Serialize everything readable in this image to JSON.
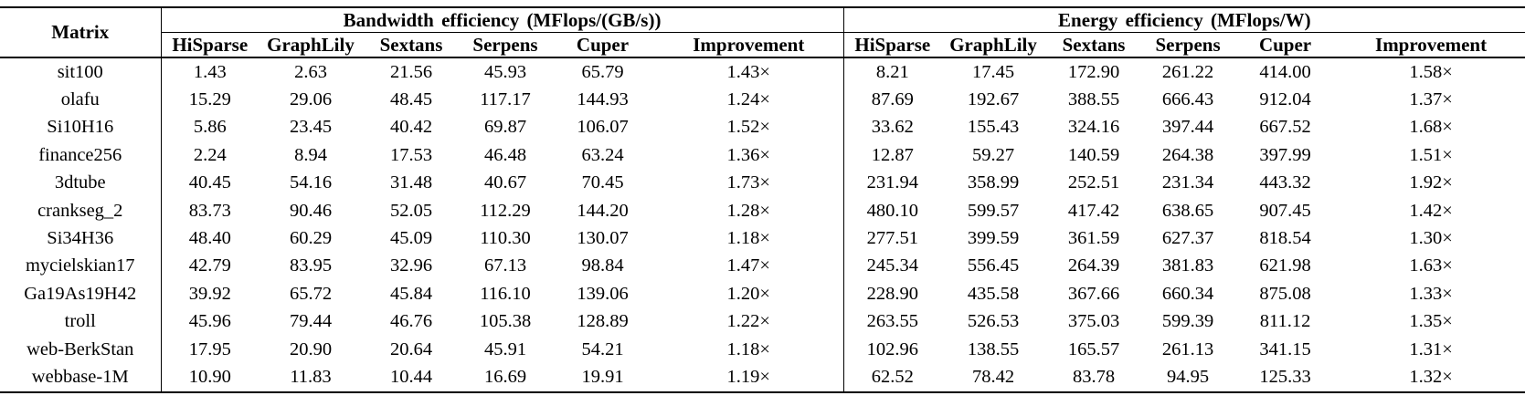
{
  "table": {
    "matrix_header": "Matrix",
    "groups": [
      {
        "label": "Bandwidth efficiency (MFlops/(GB/s))"
      },
      {
        "label": "Energy efficiency (MFlops/W)"
      }
    ],
    "columns": [
      "HiSparse",
      "GraphLily",
      "Sextans",
      "Serpens",
      "Cuper",
      "Improvement"
    ],
    "rows": [
      {
        "cells": [
          "sit100",
          "1.43",
          "2.63",
          "21.56",
          "45.93",
          "65.79",
          "1.43×",
          "8.21",
          "17.45",
          "172.90",
          "261.22",
          "414.00",
          "1.58×"
        ]
      },
      {
        "cells": [
          "olafu",
          "15.29",
          "29.06",
          "48.45",
          "117.17",
          "144.93",
          "1.24×",
          "87.69",
          "192.67",
          "388.55",
          "666.43",
          "912.04",
          "1.37×"
        ]
      },
      {
        "cells": [
          "Si10H16",
          "5.86",
          "23.45",
          "40.42",
          "69.87",
          "106.07",
          "1.52×",
          "33.62",
          "155.43",
          "324.16",
          "397.44",
          "667.52",
          "1.68×"
        ]
      },
      {
        "cells": [
          "finance256",
          "2.24",
          "8.94",
          "17.53",
          "46.48",
          "63.24",
          "1.36×",
          "12.87",
          "59.27",
          "140.59",
          "264.38",
          "397.99",
          "1.51×"
        ]
      },
      {
        "cells": [
          "3dtube",
          "40.45",
          "54.16",
          "31.48",
          "40.67",
          "70.45",
          "1.73×",
          "231.94",
          "358.99",
          "252.51",
          "231.34",
          "443.32",
          "1.92×"
        ]
      },
      {
        "cells": [
          "crankseg_2",
          "83.73",
          "90.46",
          "52.05",
          "112.29",
          "144.20",
          "1.28×",
          "480.10",
          "599.57",
          "417.42",
          "638.65",
          "907.45",
          "1.42×"
        ]
      },
      {
        "cells": [
          "Si34H36",
          "48.40",
          "60.29",
          "45.09",
          "110.30",
          "130.07",
          "1.18×",
          "277.51",
          "399.59",
          "361.59",
          "627.37",
          "818.54",
          "1.30×"
        ]
      },
      {
        "cells": [
          "mycielskian17",
          "42.79",
          "83.95",
          "32.96",
          "67.13",
          "98.84",
          "1.47×",
          "245.34",
          "556.45",
          "264.39",
          "381.83",
          "621.98",
          "1.63×"
        ]
      },
      {
        "cells": [
          "Ga19As19H42",
          "39.92",
          "65.72",
          "45.84",
          "116.10",
          "139.06",
          "1.20×",
          "228.90",
          "435.58",
          "367.66",
          "660.34",
          "875.08",
          "1.33×"
        ]
      },
      {
        "cells": [
          "troll",
          "45.96",
          "79.44",
          "46.76",
          "105.38",
          "128.89",
          "1.22×",
          "263.55",
          "526.53",
          "375.03",
          "599.39",
          "811.12",
          "1.35×"
        ]
      },
      {
        "cells": [
          "web-BerkStan",
          "17.95",
          "20.90",
          "20.64",
          "45.91",
          "54.21",
          "1.18×",
          "102.96",
          "138.55",
          "165.57",
          "261.13",
          "341.15",
          "1.31×"
        ]
      },
      {
        "cells": [
          "webbase-1M",
          "10.90",
          "11.83",
          "10.44",
          "16.69",
          "19.91",
          "1.19×",
          "62.52",
          "78.42",
          "83.78",
          "94.95",
          "125.33",
          "1.32×"
        ]
      }
    ]
  }
}
